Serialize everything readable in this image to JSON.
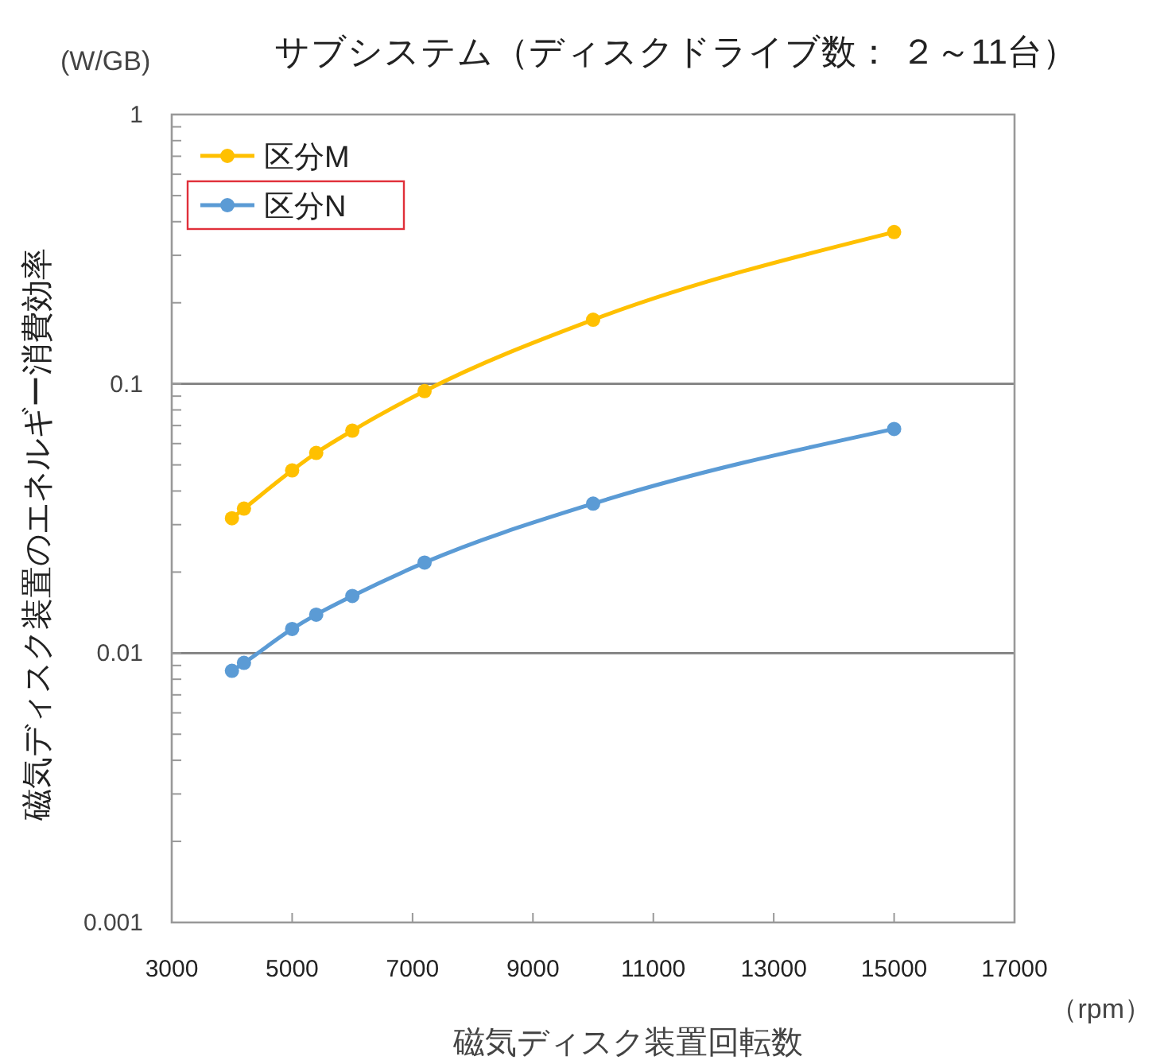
{
  "chart_data": {
    "type": "line",
    "title": "サブシステム（ディスクドライブ数： ２～11台）",
    "xlabel": "磁気ディスク装置回転数",
    "ylabel": "磁気ディスク装置のエネルギー消費効率",
    "annotations": [
      "(W/GB)",
      "（rpm）"
    ],
    "x": [
      4000,
      4200,
      5000,
      5400,
      6000,
      7200,
      10000,
      15000
    ],
    "series": [
      {
        "name": "区分M",
        "color": "#ffc000",
        "values": [
          0.0317,
          0.0344,
          0.0477,
          0.0554,
          0.067,
          0.094,
          0.173,
          0.366
        ]
      },
      {
        "name": "区分N",
        "color": "#5b9bd5",
        "values": [
          0.0086,
          0.0092,
          0.0123,
          0.0139,
          0.0163,
          0.0217,
          0.0359,
          0.068
        ]
      }
    ],
    "xlim": [
      3000,
      17000
    ],
    "xticks": [
      3000,
      5000,
      7000,
      9000,
      11000,
      13000,
      15000,
      17000
    ],
    "ylim": [
      0.001,
      1
    ],
    "yticks": [
      {
        "value": 0.001,
        "label": "0.001"
      },
      {
        "value": 0.002,
        "label": null
      },
      {
        "value": 0.003,
        "label": null
      },
      {
        "value": 0.004,
        "label": null
      },
      {
        "value": 0.005,
        "label": null
      },
      {
        "value": 0.006,
        "label": null
      },
      {
        "value": 0.007,
        "label": null
      },
      {
        "value": 0.008,
        "label": null
      },
      {
        "value": 0.009,
        "label": null
      },
      {
        "value": 0.01,
        "label": "0.01"
      },
      {
        "value": 0.02,
        "label": null
      },
      {
        "value": 0.03,
        "label": null
      },
      {
        "value": 0.04,
        "label": null
      },
      {
        "value": 0.05,
        "label": null
      },
      {
        "value": 0.06,
        "label": null
      },
      {
        "value": 0.07,
        "label": null
      },
      {
        "value": 0.08,
        "label": null
      },
      {
        "value": 0.09,
        "label": null
      },
      {
        "value": 0.1,
        "label": "0.1"
      },
      {
        "value": 0.2,
        "label": null
      },
      {
        "value": 0.3,
        "label": null
      },
      {
        "value": 0.4,
        "label": null
      },
      {
        "value": 0.5,
        "label": null
      },
      {
        "value": 0.6,
        "label": null
      },
      {
        "value": 0.7,
        "label": null
      },
      {
        "value": 0.8,
        "label": null
      },
      {
        "value": 0.9,
        "label": null
      },
      {
        "value": 1,
        "label": "1"
      }
    ],
    "log": "y",
    "grid": "y",
    "legend": "top left",
    "marker": "circle",
    "line_style": "solid"
  }
}
